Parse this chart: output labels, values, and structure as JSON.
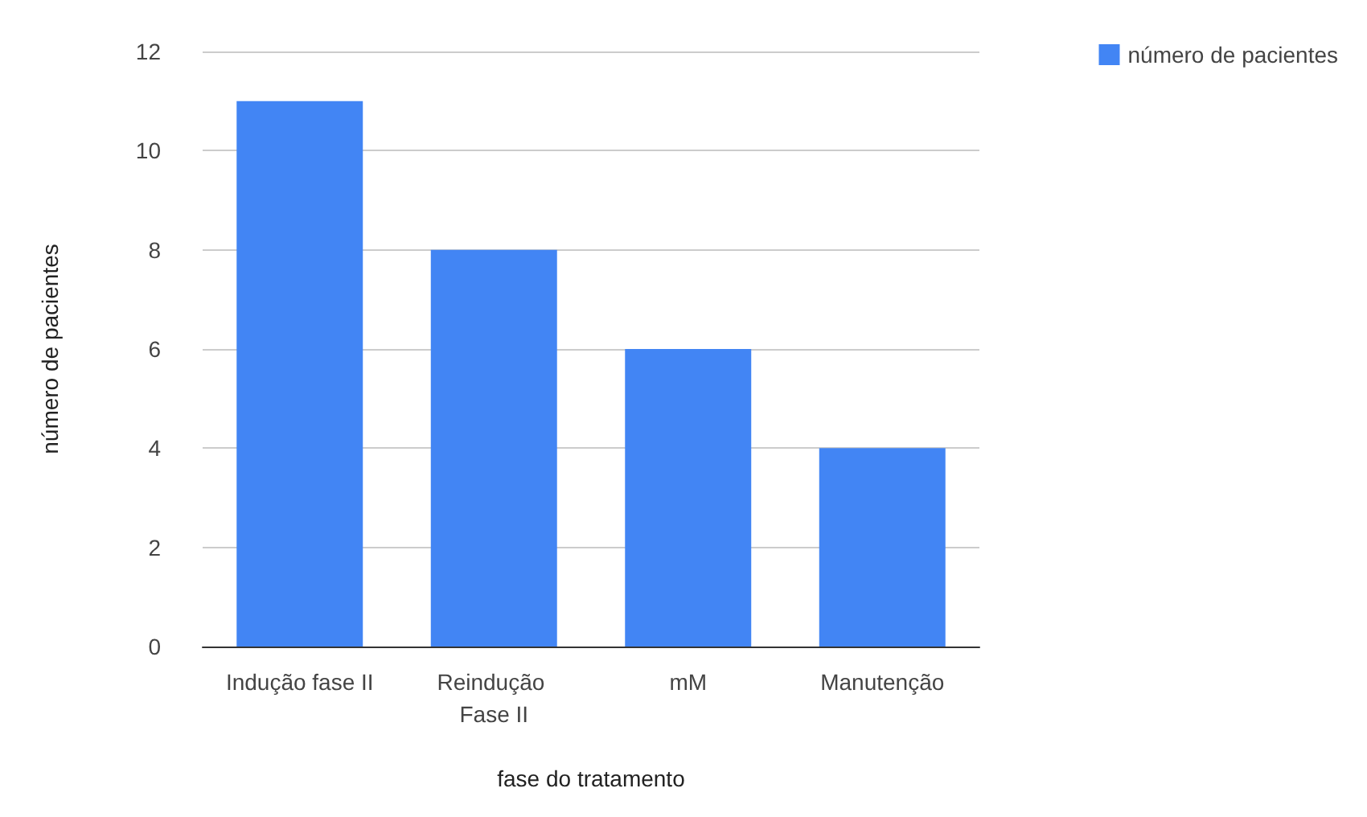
{
  "chart_data": {
    "type": "bar",
    "xlabel": "fase do tratamento",
    "ylabel": "número de pacientes",
    "categories": [
      "Indução fase II",
      "Reindução Fase II",
      "mM",
      "Manutenção"
    ],
    "series": [
      {
        "name": "número de pacientes",
        "color": "#4285f4",
        "values": [
          11,
          8,
          6,
          4
        ]
      }
    ],
    "ylim": [
      0,
      12
    ],
    "yticks": [
      0,
      2,
      4,
      6,
      8,
      10,
      12
    ],
    "grid": "y",
    "legend": "top right"
  }
}
